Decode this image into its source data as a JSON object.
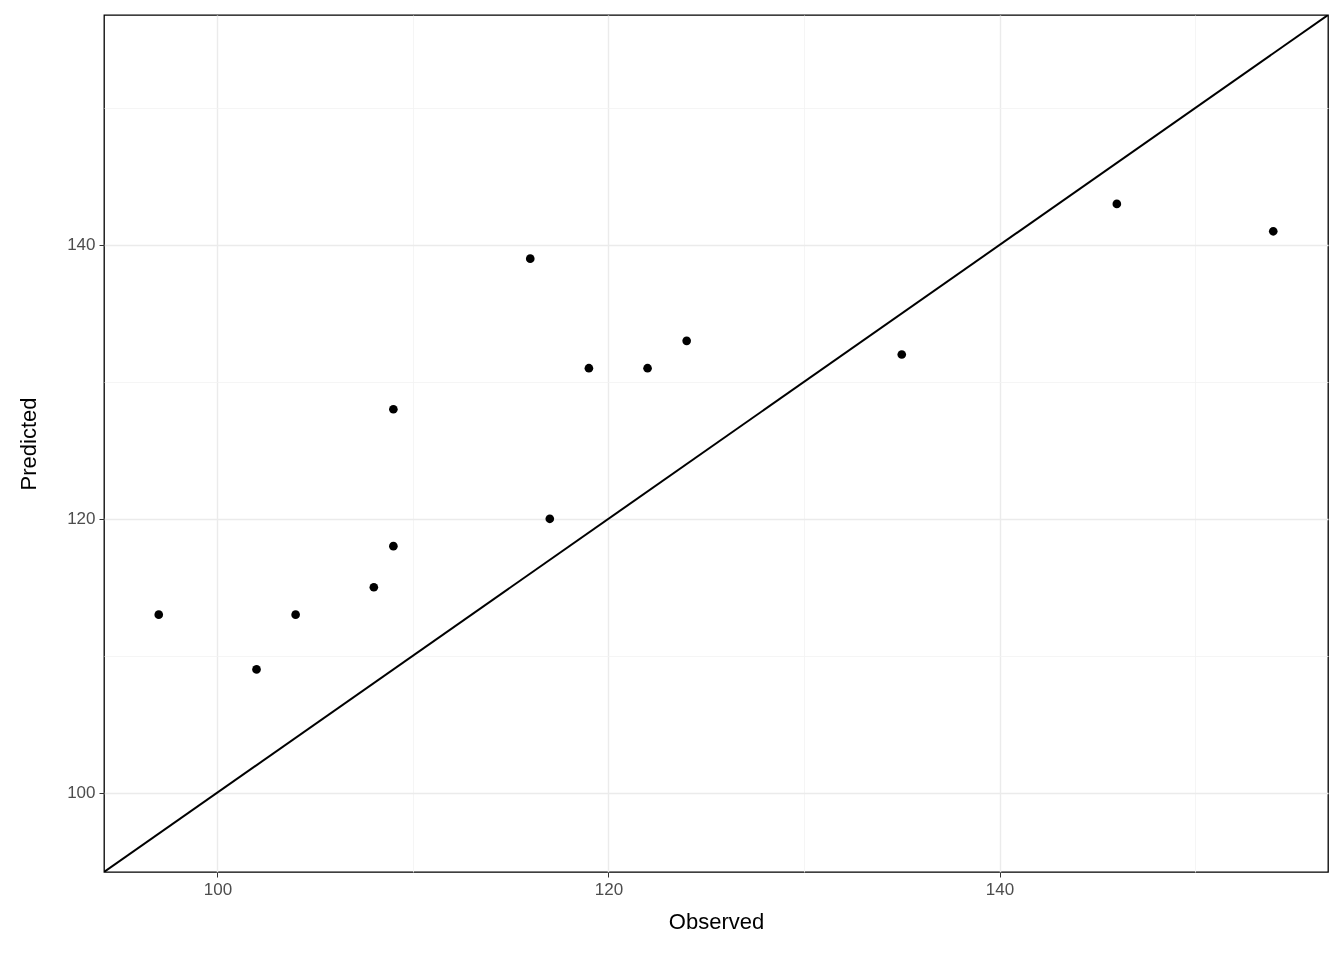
{
  "chart_data": {
    "type": "scatter",
    "xlabel": "Observed",
    "ylabel": "Predicted",
    "grid": true,
    "xlim": [
      94.2,
      156.8
    ],
    "ylim": [
      94.2,
      156.8
    ],
    "xticks": [
      100,
      {
        "value": 110,
        "label": null
      },
      120,
      {
        "value": 130,
        "label": null
      },
      140,
      {
        "value": 150,
        "label": null
      }
    ],
    "yticks": [
      100,
      {
        "value": 110,
        "label": null
      },
      120,
      {
        "value": 130,
        "label": null
      },
      140,
      {
        "value": 150,
        "label": null
      }
    ],
    "series": [
      {
        "marker": "circle",
        "color": "#000000",
        "x": [
          97,
          102,
          104,
          108,
          109,
          109,
          116,
          117,
          119,
          122,
          124,
          135,
          146,
          154
        ],
        "values": [
          113,
          109,
          113,
          115,
          128,
          118,
          139,
          120,
          131,
          131,
          133,
          132,
          143,
          141
        ]
      },
      {
        "type": "line",
        "marker": "none",
        "color": "#000000",
        "x": [
          94.2,
          156.8
        ],
        "values": [
          94.2,
          156.8
        ]
      }
    ]
  }
}
